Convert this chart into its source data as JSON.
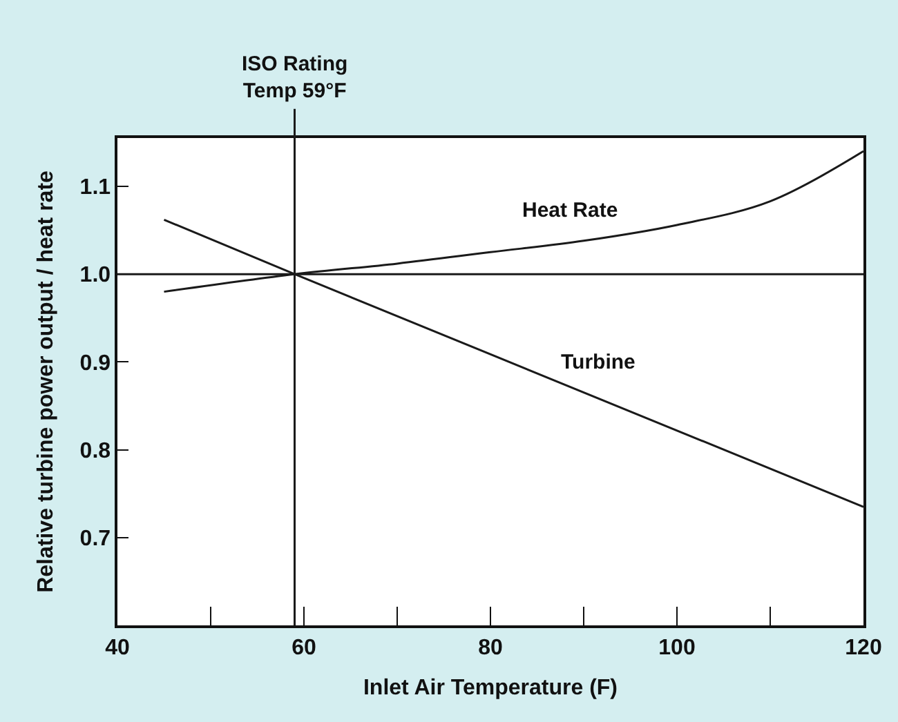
{
  "chart_data": {
    "type": "line",
    "xlabel": "Inlet Air Temperature (F)",
    "ylabel": "Relative turbine power output / heat rate",
    "xlim": [
      40,
      120
    ],
    "ylim": [
      0.6,
      1.155
    ],
    "xticks": [
      40,
      {
        "value": 50,
        "label": null
      },
      60,
      {
        "value": 70,
        "label": null
      },
      80,
      {
        "value": 90,
        "label": null
      },
      100,
      {
        "value": 110,
        "label": null
      },
      120
    ],
    "yticks": [
      0.7,
      0.8,
      0.9,
      {
        "value": 1.0,
        "label": "1.0"
      },
      1.1
    ],
    "legend": false,
    "marker": "none",
    "line_style": "solid",
    "series": [
      {
        "name": "Heat Rate",
        "color": "#1a1a1a",
        "x": [
          45,
          59,
          70,
          80,
          90,
          100,
          110,
          120
        ],
        "values": [
          0.98,
          1.0,
          1.012,
          1.025,
          1.038,
          1.056,
          1.083,
          1.14
        ]
      },
      {
        "name": "Turbine",
        "color": "#1a1a1a",
        "x": [
          45,
          59,
          120
        ],
        "values": [
          1.062,
          1.0,
          0.735
        ]
      }
    ],
    "ref_lines": [
      {
        "axis": "x",
        "value": 59,
        "label": "ISO Rating\nTemp 59°F",
        "color": "#1a1a1a"
      },
      {
        "axis": "y",
        "value": 1.0,
        "color": "#1a1a1a"
      }
    ]
  }
}
